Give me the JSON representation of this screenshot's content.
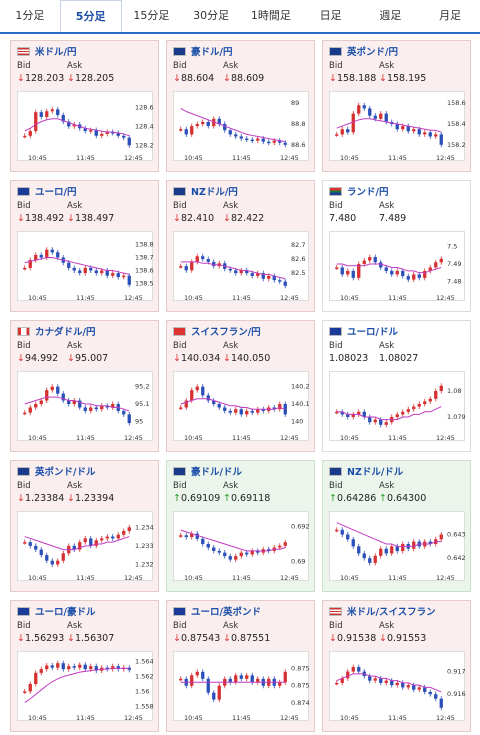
{
  "tabs": [
    {
      "label": "1分足",
      "active": false
    },
    {
      "label": "5分足",
      "active": true
    },
    {
      "label": "15分足",
      "active": false
    },
    {
      "label": "30分足",
      "active": false
    },
    {
      "label": "1時間足",
      "active": false
    },
    {
      "label": "日足",
      "active": false
    },
    {
      "label": "週足",
      "active": false
    },
    {
      "label": "月足",
      "active": false
    }
  ],
  "cards": [
    {
      "pair": "米ドル/円",
      "flag": "us-flag-icon",
      "state": "down",
      "bid": "128.203",
      "ask": "128.205",
      "arrow": "↓",
      "chart_data": {
        "type": "candlestick",
        "x_ticks": [
          "10:45",
          "11:45",
          "12:45"
        ],
        "y_ticks": [
          "128.6",
          "128.4",
          "128.2"
        ],
        "ylim": [
          128.15,
          128.7
        ],
        "close": [
          128.3,
          128.35,
          128.55,
          128.5,
          128.56,
          128.58,
          128.52,
          128.45,
          128.4,
          128.42,
          128.38,
          128.35,
          128.36,
          128.3,
          128.32,
          128.34,
          128.33,
          128.3,
          128.28,
          128.2
        ],
        "ma": [
          128.35,
          128.38,
          128.42,
          128.45,
          128.47,
          128.48,
          128.48,
          128.46,
          128.44,
          128.42,
          128.4,
          128.38,
          128.37,
          128.36,
          128.35,
          128.34,
          128.34,
          128.33,
          128.32,
          128.3
        ]
      }
    },
    {
      "pair": "豪ドル/円",
      "flag": "au-flag-icon",
      "state": "down",
      "bid": "88.604",
      "ask": "88.609",
      "arrow": "↓",
      "chart_data": {
        "type": "candlestick",
        "x_ticks": [
          "10:45",
          "11:45",
          "12:45"
        ],
        "y_ticks": [
          "89",
          "88.8",
          "88.6"
        ],
        "ylim": [
          88.55,
          89.05
        ],
        "close": [
          88.75,
          88.7,
          88.78,
          88.8,
          88.82,
          88.78,
          88.85,
          88.8,
          88.74,
          88.7,
          88.68,
          88.66,
          88.65,
          88.64,
          88.66,
          88.63,
          88.62,
          88.64,
          88.62,
          88.6
        ],
        "ma": [
          88.95,
          88.92,
          88.9,
          88.88,
          88.86,
          88.84,
          88.82,
          88.8,
          88.78,
          88.76,
          88.74,
          88.72,
          88.7,
          88.69,
          88.68,
          88.67,
          88.66,
          88.65,
          88.64,
          88.63
        ]
      }
    },
    {
      "pair": "英ポンド/円",
      "flag": "gb-flag-icon",
      "state": "down",
      "bid": "158.188",
      "ask": "158.195",
      "arrow": "↓",
      "chart_data": {
        "type": "candlestick",
        "x_ticks": [
          "10:45",
          "11:45",
          "12:45"
        ],
        "y_ticks": [
          "158.6",
          "158.4",
          "158.2"
        ],
        "ylim": [
          158.15,
          158.65
        ],
        "close": [
          158.3,
          158.35,
          158.32,
          158.5,
          158.58,
          158.55,
          158.48,
          158.45,
          158.5,
          158.42,
          158.4,
          158.35,
          158.38,
          158.33,
          158.35,
          158.3,
          158.32,
          158.28,
          158.3,
          158.2
        ],
        "ma": [
          158.36,
          158.38,
          158.4,
          158.42,
          158.44,
          158.45,
          158.45,
          158.44,
          158.43,
          158.42,
          158.41,
          158.4,
          158.39,
          158.38,
          158.37,
          158.36,
          158.35,
          158.34,
          158.34,
          158.32
        ]
      }
    },
    {
      "pair": "ユーロ/円",
      "flag": "eu-flag-icon",
      "state": "down",
      "bid": "138.492",
      "ask": "138.497",
      "arrow": "↓",
      "chart_data": {
        "type": "candlestick",
        "x_ticks": [
          "10:45",
          "11:45",
          "12:45"
        ],
        "y_ticks": [
          "138.8",
          "138.7",
          "138.6",
          "138.5"
        ],
        "ylim": [
          138.45,
          138.85
        ],
        "close": [
          138.62,
          138.68,
          138.72,
          138.7,
          138.76,
          138.74,
          138.7,
          138.66,
          138.62,
          138.6,
          138.58,
          138.62,
          138.6,
          138.58,
          138.6,
          138.56,
          138.58,
          138.55,
          138.56,
          138.49
        ],
        "ma": [
          138.66,
          138.67,
          138.68,
          138.69,
          138.7,
          138.7,
          138.69,
          138.68,
          138.67,
          138.66,
          138.65,
          138.64,
          138.63,
          138.62,
          138.61,
          138.6,
          138.6,
          138.59,
          138.58,
          138.57
        ]
      }
    },
    {
      "pair": "NZドル/円",
      "flag": "nz-flag-icon",
      "state": "down",
      "bid": "82.410",
      "ask": "82.422",
      "arrow": "↓",
      "chart_data": {
        "type": "candlestick",
        "x_ticks": [
          "10:45",
          "11:45",
          "12:45"
        ],
        "y_ticks": [
          "82.7",
          "82.6",
          "82.5"
        ],
        "ylim": [
          82.38,
          82.75
        ],
        "close": [
          82.55,
          82.52,
          82.58,
          82.62,
          82.6,
          82.58,
          82.55,
          82.57,
          82.53,
          82.52,
          82.5,
          82.52,
          82.5,
          82.48,
          82.5,
          82.46,
          82.48,
          82.45,
          82.44,
          82.41
        ],
        "ma": [
          82.58,
          82.58,
          82.58,
          82.58,
          82.57,
          82.57,
          82.56,
          82.56,
          82.55,
          82.54,
          82.53,
          82.52,
          82.52,
          82.51,
          82.5,
          82.49,
          82.49,
          82.48,
          82.47,
          82.46
        ]
      }
    },
    {
      "pair": "ランド/円",
      "flag": "za-flag-icon",
      "state": "flat",
      "bid": "7.480",
      "ask": "7.489",
      "arrow": "",
      "chart_data": {
        "type": "candlestick",
        "x_ticks": [
          "10:45",
          "11:45",
          "12:45"
        ],
        "y_ticks": [
          "7.5",
          "7.49",
          "7.48"
        ],
        "ylim": [
          7.475,
          7.505
        ],
        "close": [
          7.488,
          7.484,
          7.486,
          7.482,
          7.49,
          7.492,
          7.494,
          7.491,
          7.488,
          7.486,
          7.484,
          7.486,
          7.483,
          7.481,
          7.484,
          7.482,
          7.486,
          7.488,
          7.491,
          7.493
        ],
        "ma": [
          7.49,
          7.49,
          7.489,
          7.489,
          7.489,
          7.489,
          7.49,
          7.49,
          7.49,
          7.489,
          7.488,
          7.488,
          7.487,
          7.486,
          7.486,
          7.485,
          7.485,
          7.486,
          7.487,
          7.488
        ]
      }
    },
    {
      "pair": "カナダドル/円",
      "flag": "ca-flag-icon",
      "state": "down",
      "bid": "94.992",
      "ask": "95.007",
      "arrow": "↓",
      "chart_data": {
        "type": "candlestick",
        "x_ticks": [
          "10:45",
          "11:45",
          "12:45"
        ],
        "y_ticks": [
          "95.2",
          "95.1",
          "95"
        ],
        "ylim": [
          94.95,
          95.25
        ],
        "close": [
          95.05,
          95.08,
          95.1,
          95.12,
          95.18,
          95.2,
          95.16,
          95.12,
          95.1,
          95.12,
          95.08,
          95.06,
          95.08,
          95.07,
          95.09,
          95.08,
          95.1,
          95.06,
          95.04,
          94.99
        ],
        "ma": [
          95.1,
          95.11,
          95.12,
          95.13,
          95.14,
          95.14,
          95.14,
          95.13,
          95.12,
          95.12,
          95.11,
          95.1,
          95.1,
          95.09,
          95.09,
          95.09,
          95.08,
          95.08,
          95.07,
          95.06
        ]
      }
    },
    {
      "pair": "スイスフラン/円",
      "flag": "ch-flag-icon",
      "state": "down",
      "bid": "140.034",
      "ask": "140.050",
      "arrow": "↓",
      "chart_data": {
        "type": "candlestick",
        "x_ticks": [
          "10:45",
          "11:45",
          "12:45"
        ],
        "y_ticks": [
          "140.2",
          "140.1",
          "140"
        ],
        "ylim": [
          139.95,
          140.25
        ],
        "close": [
          140.08,
          140.12,
          140.18,
          140.2,
          140.15,
          140.12,
          140.1,
          140.08,
          140.06,
          140.05,
          140.07,
          140.04,
          140.06,
          140.05,
          140.07,
          140.06,
          140.08,
          140.07,
          140.1,
          140.04
        ],
        "ma": [
          140.1,
          140.11,
          140.12,
          140.13,
          140.13,
          140.13,
          140.12,
          140.11,
          140.1,
          140.09,
          140.09,
          140.08,
          140.08,
          140.07,
          140.07,
          140.07,
          140.07,
          140.07,
          140.08,
          140.07
        ]
      }
    },
    {
      "pair": "ユーロ/ドル",
      "flag": "eu-us-flag-icon",
      "state": "flat",
      "bid": "1.08023",
      "ask": "1.08027",
      "arrow": "",
      "chart_data": {
        "type": "candlestick",
        "x_ticks": [
          "10:45",
          "11:45",
          "12:45"
        ],
        "y_ticks": [
          "1.08",
          "1.079"
        ],
        "ylim": [
          1.0785,
          1.0805
        ],
        "close": [
          1.0792,
          1.0791,
          1.079,
          1.0791,
          1.0792,
          1.079,
          1.0788,
          1.0789,
          1.0787,
          1.0788,
          1.079,
          1.0791,
          1.0792,
          1.0793,
          1.0794,
          1.0795,
          1.0796,
          1.0797,
          1.08,
          1.0802
        ],
        "ma": [
          1.0792,
          1.0792,
          1.0791,
          1.0791,
          1.0791,
          1.079,
          1.079,
          1.079,
          1.0789,
          1.0789,
          1.0789,
          1.0789,
          1.079,
          1.079,
          1.0791,
          1.0791,
          1.0792,
          1.0792,
          1.0793,
          1.0794
        ]
      }
    },
    {
      "pair": "英ポンド/ドル",
      "flag": "gb-us-flag-icon",
      "state": "down",
      "bid": "1.23384",
      "ask": "1.23394",
      "arrow": "↓",
      "chart_data": {
        "type": "candlestick",
        "x_ticks": [
          "10:45",
          "11:45",
          "12:45"
        ],
        "y_ticks": [
          "1.234",
          "1.233",
          "1.232"
        ],
        "ylim": [
          1.2317,
          1.2345
        ],
        "close": [
          1.2332,
          1.233,
          1.2328,
          1.2325,
          1.2322,
          1.232,
          1.2322,
          1.2326,
          1.233,
          1.2328,
          1.2332,
          1.2334,
          1.233,
          1.2333,
          1.2334,
          1.2335,
          1.2334,
          1.2336,
          1.2338,
          1.234
        ],
        "ma": [
          1.2335,
          1.2334,
          1.2333,
          1.2332,
          1.2331,
          1.233,
          1.2329,
          1.2328,
          1.2328,
          1.2328,
          1.2329,
          1.233,
          1.233,
          1.2331,
          1.2331,
          1.2332,
          1.2332,
          1.2333,
          1.2334,
          1.2335
        ]
      }
    },
    {
      "pair": "豪ドル/ドル",
      "flag": "au-us-flag-icon",
      "state": "up",
      "bid": "0.69109",
      "ask": "0.69118",
      "arrow": "↑",
      "chart_data": {
        "type": "candlestick",
        "x_ticks": [
          "10:45",
          "11:45",
          "12:45"
        ],
        "y_ticks": [
          "0.692",
          "0.69"
        ],
        "ylim": [
          0.6895,
          0.6925
        ],
        "close": [
          0.6915,
          0.6914,
          0.6916,
          0.6913,
          0.691,
          0.6908,
          0.6906,
          0.6905,
          0.6903,
          0.6901,
          0.6903,
          0.6905,
          0.6904,
          0.6906,
          0.6905,
          0.6907,
          0.6906,
          0.6908,
          0.6909,
          0.6911
        ],
        "ma": [
          0.6918,
          0.6917,
          0.6916,
          0.6915,
          0.6914,
          0.6913,
          0.6912,
          0.6911,
          0.691,
          0.6909,
          0.6908,
          0.6907,
          0.6906,
          0.6906,
          0.6906,
          0.6906,
          0.6906,
          0.6907,
          0.6907,
          0.6908
        ]
      }
    },
    {
      "pair": "NZドル/ドル",
      "flag": "nz-us-flag-icon",
      "state": "up",
      "bid": "0.64286",
      "ask": "0.64300",
      "arrow": "↑",
      "chart_data": {
        "type": "candlestick",
        "x_ticks": [
          "10:45",
          "11:45",
          "12:45"
        ],
        "y_ticks": [
          "0.643",
          "0.642"
        ],
        "ylim": [
          0.6415,
          0.6437
        ],
        "close": [
          0.6432,
          0.643,
          0.6428,
          0.6425,
          0.6422,
          0.642,
          0.6418,
          0.6421,
          0.6424,
          0.6422,
          0.6425,
          0.6423,
          0.6426,
          0.6424,
          0.6427,
          0.6425,
          0.6427,
          0.6426,
          0.6428,
          0.643
        ],
        "ma": [
          0.6435,
          0.6434,
          0.6433,
          0.6432,
          0.6431,
          0.643,
          0.6429,
          0.6428,
          0.6427,
          0.6426,
          0.6426,
          0.6425,
          0.6425,
          0.6425,
          0.6425,
          0.6426,
          0.6426,
          0.6426,
          0.6427,
          0.6427
        ]
      }
    },
    {
      "pair": "ユーロ/豪ドル",
      "flag": "eu-au-flag-icon",
      "state": "down",
      "bid": "1.56293",
      "ask": "1.56307",
      "arrow": "↓",
      "chart_data": {
        "type": "candlestick",
        "x_ticks": [
          "10:45",
          "11:45",
          "12:45"
        ],
        "y_ticks": [
          "1.564",
          "1.562",
          "1.56",
          "1.558"
        ],
        "ylim": [
          1.5575,
          1.5645
        ],
        "close": [
          1.56,
          1.561,
          1.5625,
          1.563,
          1.5635,
          1.5632,
          1.5638,
          1.563,
          1.5634,
          1.5632,
          1.5636,
          1.563,
          1.5634,
          1.5628,
          1.5632,
          1.563,
          1.5634,
          1.563,
          1.5632,
          1.5629
        ],
        "ma": [
          1.5585,
          1.559,
          1.5596,
          1.5602,
          1.5608,
          1.5613,
          1.5617,
          1.562,
          1.5622,
          1.5624,
          1.5626,
          1.5627,
          1.5628,
          1.5629,
          1.563,
          1.563,
          1.5631,
          1.5631,
          1.5631,
          1.5631
        ]
      }
    },
    {
      "pair": "ユーロ/英ポンド",
      "flag": "eu-gb-flag-icon",
      "state": "down",
      "bid": "0.87543",
      "ask": "0.87551",
      "arrow": "↓",
      "chart_data": {
        "type": "candlestick",
        "x_ticks": [
          "10:45",
          "11:45",
          "12:45"
        ],
        "y_ticks": [
          "0.8755",
          "0.875",
          "0.8745"
        ],
        "ylim": [
          0.8743,
          0.8758
        ],
        "close": [
          0.8752,
          0.875,
          0.8753,
          0.8754,
          0.8752,
          0.8748,
          0.8746,
          0.875,
          0.8752,
          0.8751,
          0.8753,
          0.8752,
          0.8753,
          0.8751,
          0.8752,
          0.875,
          0.8752,
          0.875,
          0.8751,
          0.8754
        ],
        "ma": [
          0.8751,
          0.8751,
          0.8751,
          0.8751,
          0.8751,
          0.8751,
          0.8751,
          0.8751,
          0.8751,
          0.8751,
          0.8751,
          0.8751,
          0.8751,
          0.8751,
          0.8751,
          0.8751,
          0.8751,
          0.8751,
          0.8751,
          0.8751
        ]
      }
    },
    {
      "pair": "米ドル/スイスフラン",
      "flag": "us-ch-flag-icon",
      "state": "down",
      "bid": "0.91538",
      "ask": "0.91553",
      "arrow": "↓",
      "chart_data": {
        "type": "candlestick",
        "x_ticks": [
          "10:45",
          "11:45",
          "12:45"
        ],
        "y_ticks": [
          "0.917",
          "0.916"
        ],
        "ylim": [
          0.9153,
          0.9176
        ],
        "close": [
          0.9165,
          0.9167,
          0.917,
          0.9172,
          0.917,
          0.9168,
          0.9166,
          0.9167,
          0.9165,
          0.9166,
          0.9164,
          0.9165,
          0.9163,
          0.9164,
          0.9162,
          0.9163,
          0.9161,
          0.916,
          0.9158,
          0.9154
        ],
        "ma": [
          0.9166,
          0.9167,
          0.9168,
          0.9169,
          0.9169,
          0.9169,
          0.9168,
          0.9168,
          0.9167,
          0.9167,
          0.9166,
          0.9166,
          0.9165,
          0.9165,
          0.9164,
          0.9164,
          0.9163,
          0.9163,
          0.9162,
          0.9161
        ]
      }
    }
  ],
  "labels": {
    "bid": "Bid",
    "ask": "Ask"
  },
  "colors": {
    "up_candle": "#d63030",
    "down_candle": "#2a4fb8",
    "ma_line": "#c23ac2",
    "pair_text": "#1a4ea8"
  }
}
